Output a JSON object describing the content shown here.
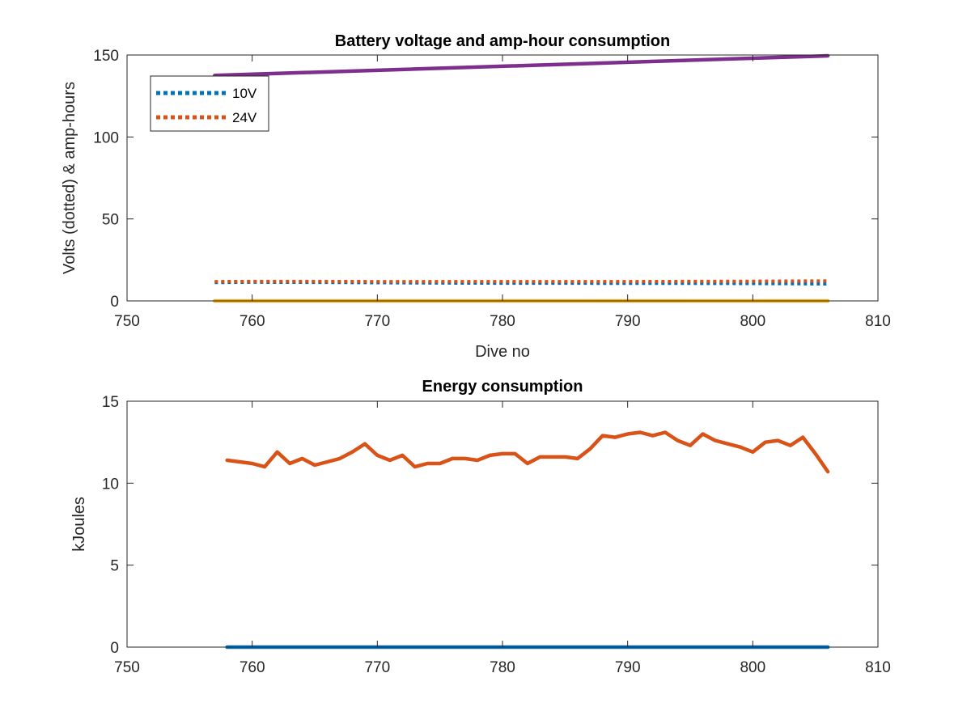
{
  "chart_data": [
    {
      "type": "line",
      "title": "Battery voltage and amp-hour consumption",
      "xlabel": "Dive no",
      "ylabel": "Volts (dotted) & amp-hours",
      "xlim": [
        750,
        810
      ],
      "ylim": [
        0,
        150
      ],
      "xticks": [
        750,
        760,
        770,
        780,
        790,
        800,
        810
      ],
      "yticks": [
        0,
        50,
        100,
        150
      ],
      "grid": false,
      "legend": {
        "position": "top-left",
        "entries": [
          "10V",
          "24V"
        ]
      },
      "series": [
        {
          "name": "10V",
          "style": "dotted",
          "color": "#0072BD",
          "x": [
            757,
            760,
            765,
            770,
            775,
            780,
            785,
            790,
            795,
            800,
            803,
            806
          ],
          "y": [
            11.2,
            11.4,
            11.3,
            11.1,
            10.9,
            10.8,
            10.8,
            10.7,
            10.7,
            10.6,
            10.5,
            10.3
          ]
        },
        {
          "name": "24V",
          "style": "dotted",
          "color": "#D95319",
          "x": [
            757,
            760,
            765,
            770,
            775,
            780,
            785,
            790,
            795,
            800,
            803,
            806
          ],
          "y": [
            11.8,
            11.9,
            11.9,
            11.8,
            11.8,
            11.8,
            11.8,
            11.8,
            11.9,
            12.0,
            12.1,
            12.2
          ]
        },
        {
          "style": "solid",
          "color": "#7E2F8E",
          "x": [
            757,
            806
          ],
          "y": [
            137.5,
            149.5
          ]
        },
        {
          "style": "solid",
          "color": "#EDB120",
          "x": [
            757,
            806
          ],
          "y": [
            0,
            0
          ]
        }
      ]
    },
    {
      "type": "line",
      "title": "Energy consumption",
      "xlabel": "",
      "ylabel": "kJoules",
      "xlim": [
        750,
        810
      ],
      "ylim": [
        0,
        15
      ],
      "xticks": [
        750,
        760,
        770,
        780,
        790,
        800,
        810
      ],
      "yticks": [
        0,
        5,
        10,
        15
      ],
      "grid": false,
      "series": [
        {
          "style": "solid",
          "color": "#D95319",
          "x": [
            758,
            759,
            760,
            761,
            762,
            763,
            764,
            765,
            766,
            767,
            768,
            769,
            770,
            771,
            772,
            773,
            774,
            775,
            776,
            777,
            778,
            779,
            780,
            781,
            782,
            783,
            784,
            785,
            786,
            787,
            788,
            789,
            790,
            791,
            792,
            793,
            794,
            795,
            796,
            797,
            798,
            799,
            800,
            801,
            802,
            803,
            804,
            805,
            806
          ],
          "y": [
            11.4,
            11.3,
            11.2,
            11.0,
            11.9,
            11.2,
            11.5,
            11.1,
            11.3,
            11.5,
            11.9,
            12.4,
            11.7,
            11.4,
            11.7,
            11.0,
            11.2,
            11.2,
            11.5,
            11.5,
            11.4,
            11.7,
            11.8,
            11.8,
            11.2,
            11.6,
            11.6,
            11.6,
            11.5,
            12.1,
            12.9,
            12.8,
            13.0,
            13.1,
            12.9,
            13.1,
            12.6,
            12.3,
            13.0,
            12.6,
            12.4,
            12.2,
            11.9,
            12.5,
            12.6,
            12.3,
            12.8,
            11.8,
            10.7
          ]
        },
        {
          "style": "solid",
          "color": "#0072BD",
          "x": [
            758,
            806
          ],
          "y": [
            0,
            0
          ]
        }
      ]
    }
  ]
}
